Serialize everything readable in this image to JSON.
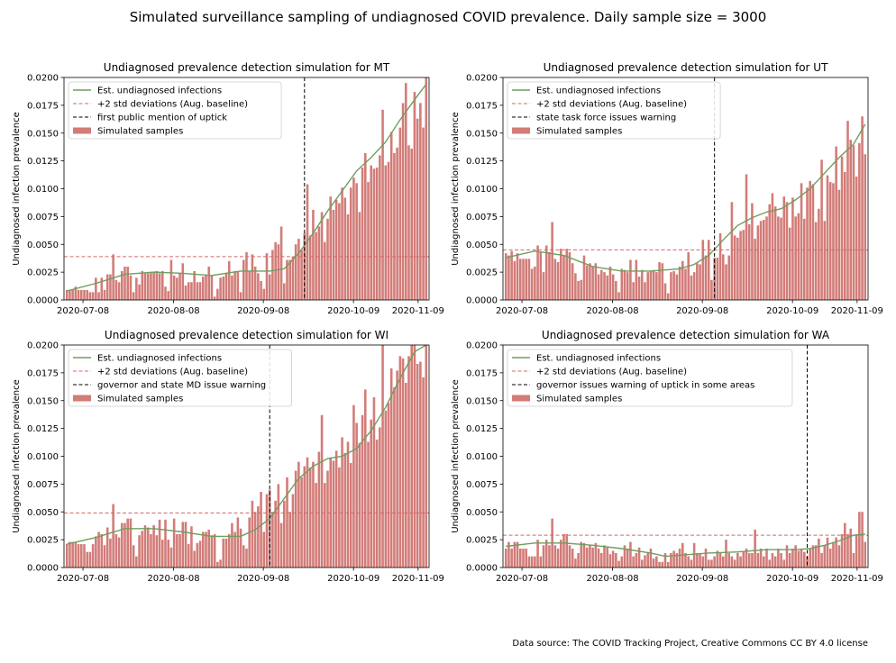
{
  "figure": {
    "suptitle": "Simulated surveillance sampling of undiagnosed COVID prevalence. Daily sample size = 3000",
    "source": "Data source: The COVID Tracking Project, Creative Commons CC BY 4.0 license"
  },
  "colors": {
    "bar": "#d27c78",
    "line": "#6f9e5e",
    "threshold": "#d46a6a",
    "event": "#000000",
    "axes": "#000000"
  },
  "chart_data": [
    {
      "type": "bar",
      "title": "Undiagnosed prevalence detection simulation for MT",
      "ylabel": "Undiagnosed infection prevalence",
      "ylim": [
        0,
        0.02
      ],
      "yticks": [
        "0.0000",
        "0.0025",
        "0.0050",
        "0.0075",
        "0.0100",
        "0.0125",
        "0.0150",
        "0.0175",
        "0.0200"
      ],
      "xticks": [
        "2020-07-08",
        "2020-08-08",
        "2020-09-08",
        "2020-10-09",
        "2020-11-09"
      ],
      "xlim": [
        -1,
        125
      ],
      "legend_position": "upper-left",
      "legend": [
        "Est. undiagnosed infections",
        "+2 std deviations (Aug. baseline)",
        "first public mention of uptick",
        "Simulated samples"
      ],
      "threshold": 0.0039,
      "event_day": 82,
      "line_points": [
        [
          0,
          0.0008
        ],
        [
          10,
          0.0015
        ],
        [
          20,
          0.0023
        ],
        [
          30,
          0.0025
        ],
        [
          40,
          0.0024
        ],
        [
          50,
          0.0022
        ],
        [
          60,
          0.0026
        ],
        [
          70,
          0.0026
        ],
        [
          75,
          0.0028
        ],
        [
          80,
          0.0042
        ],
        [
          85,
          0.006
        ],
        [
          90,
          0.008
        ],
        [
          95,
          0.0098
        ],
        [
          100,
          0.0116
        ],
        [
          105,
          0.0128
        ],
        [
          110,
          0.0142
        ],
        [
          115,
          0.0162
        ],
        [
          120,
          0.018
        ],
        [
          124,
          0.0194
        ]
      ],
      "samples": [
        0.0009,
        0.0009,
        0.0009,
        0.0012,
        0.0009,
        0.0009,
        0.0009,
        0.0009,
        0.0007,
        0.0007,
        0.002,
        0.0007,
        0.002,
        0.0009,
        0.0023,
        0.0023,
        0.0041,
        0.0018,
        0.0016,
        0.0026,
        0.003,
        0.003,
        0.0022,
        0.0007,
        0.002,
        0.0014,
        0.0026,
        0.0024,
        0.0024,
        0.0025,
        0.0025,
        0.0026,
        0.0024,
        0.0026,
        0.0012,
        0.0008,
        0.0036,
        0.0022,
        0.002,
        0.0024,
        0.0033,
        0.0013,
        0.0016,
        0.0016,
        0.0026,
        0.0016,
        0.0016,
        0.0021,
        0.0022,
        0.003,
        0.0022,
        0.0003,
        0.001,
        0.002,
        0.0021,
        0.0024,
        0.0035,
        0.0022,
        0.0026,
        0.0026,
        0.0007,
        0.0036,
        0.0043,
        0.0026,
        0.0041,
        0.003,
        0.0024,
        0.0017,
        0.001,
        0.0042,
        0.0023,
        0.0045,
        0.0052,
        0.005,
        0.0066,
        0.0015,
        0.0036,
        0.0036,
        0.0039,
        0.005,
        0.0055,
        0.0045,
        0.006,
        0.0104,
        0.0058,
        0.0081,
        0.0061,
        0.0066,
        0.0079,
        0.0052,
        0.0073,
        0.0093,
        0.0081,
        0.009,
        0.0087,
        0.0101,
        0.0092,
        0.0077,
        0.0101,
        0.011,
        0.0105,
        0.0079,
        0.0119,
        0.0132,
        0.0106,
        0.0121,
        0.0118,
        0.0119,
        0.013,
        0.0171,
        0.0121,
        0.0124,
        0.0151,
        0.0132,
        0.0137,
        0.0155,
        0.0177,
        0.0195,
        0.0139,
        0.0136,
        0.0187,
        0.0163,
        0.0177,
        0.0155,
        0.02
      ]
    },
    {
      "type": "bar",
      "title": "Undiagnosed prevalence detection simulation for UT",
      "ylabel": "Undiagnosed infection prevalence",
      "ylim": [
        0,
        0.02
      ],
      "yticks": [
        "0.0000",
        "0.0025",
        "0.0050",
        "0.0075",
        "0.0100",
        "0.0125",
        "0.0150",
        "0.0175",
        "0.0200"
      ],
      "xticks": [
        "2020-07-08",
        "2020-08-08",
        "2020-09-08",
        "2020-10-09",
        "2020-11-09"
      ],
      "xlim": [
        -1,
        125
      ],
      "legend_position": "upper-left",
      "legend": [
        "Est. undiagnosed infections",
        "+2 std deviations (Aug. baseline)",
        "state task force issues warning",
        "Simulated samples"
      ],
      "threshold": 0.0045,
      "event_day": 72,
      "line_points": [
        [
          0,
          0.0038
        ],
        [
          10,
          0.0044
        ],
        [
          20,
          0.004
        ],
        [
          30,
          0.003
        ],
        [
          40,
          0.0026
        ],
        [
          50,
          0.0026
        ],
        [
          60,
          0.0028
        ],
        [
          65,
          0.0032
        ],
        [
          70,
          0.004
        ],
        [
          75,
          0.0054
        ],
        [
          80,
          0.0067
        ],
        [
          85,
          0.0074
        ],
        [
          90,
          0.0079
        ],
        [
          95,
          0.0082
        ],
        [
          100,
          0.009
        ],
        [
          105,
          0.01
        ],
        [
          110,
          0.0114
        ],
        [
          115,
          0.0128
        ],
        [
          120,
          0.014
        ],
        [
          124,
          0.0158
        ]
      ],
      "samples": [
        0.0042,
        0.004,
        0.0044,
        0.0035,
        0.0042,
        0.0037,
        0.0037,
        0.0037,
        0.0037,
        0.0028,
        0.003,
        0.0049,
        0.0043,
        0.0025,
        0.0049,
        0.0043,
        0.007,
        0.0037,
        0.0034,
        0.0046,
        0.004,
        0.0046,
        0.0043,
        0.0033,
        0.0024,
        0.0017,
        0.0018,
        0.004,
        0.0031,
        0.0033,
        0.003,
        0.0033,
        0.0023,
        0.0027,
        0.0025,
        0.0022,
        0.003,
        0.0023,
        0.0017,
        0.0007,
        0.0028,
        0.0027,
        0.0025,
        0.0036,
        0.0016,
        0.0036,
        0.0021,
        0.0027,
        0.0016,
        0.0025,
        0.0026,
        0.0027,
        0.0025,
        0.0034,
        0.0033,
        0.0015,
        0.0006,
        0.0025,
        0.0026,
        0.0023,
        0.003,
        0.0035,
        0.0028,
        0.0043,
        0.0022,
        0.0025,
        0.0033,
        0.0032,
        0.0054,
        0.004,
        0.0054,
        0.0018,
        0.0038,
        0.0038,
        0.006,
        0.0041,
        0.0032,
        0.004,
        0.0088,
        0.0058,
        0.0056,
        0.0062,
        0.0063,
        0.0113,
        0.0068,
        0.0087,
        0.0055,
        0.0067,
        0.0071,
        0.0072,
        0.0075,
        0.0086,
        0.0096,
        0.0084,
        0.0075,
        0.0074,
        0.0093,
        0.0088,
        0.0065,
        0.0092,
        0.0075,
        0.0078,
        0.0105,
        0.0073,
        0.0101,
        0.0107,
        0.0104,
        0.007,
        0.0082,
        0.0126,
        0.0071,
        0.0112,
        0.0106,
        0.0105,
        0.0138,
        0.0099,
        0.0129,
        0.0115,
        0.0161,
        0.0144,
        0.0139,
        0.0111,
        0.0141,
        0.0165,
        0.0131
      ]
    },
    {
      "type": "bar",
      "title": "Undiagnosed prevalence detection simulation for WI",
      "ylabel": "Undiagnosed infection prevalence",
      "ylim": [
        0,
        0.02
      ],
      "yticks": [
        "0.0000",
        "0.0025",
        "0.0050",
        "0.0075",
        "0.0100",
        "0.0125",
        "0.0150",
        "0.0175",
        "0.0200"
      ],
      "xticks": [
        "2020-07-08",
        "2020-08-08",
        "2020-09-08",
        "2020-10-09",
        "2020-11-09"
      ],
      "xlim": [
        -1,
        125
      ],
      "legend_position": "upper-left",
      "legend": [
        "Est. undiagnosed infections",
        "+2 std deviations (Aug. baseline)",
        "governor and state MD issue warning",
        "Simulated samples"
      ],
      "threshold": 0.0049,
      "event_day": 70,
      "line_points": [
        [
          0,
          0.0021
        ],
        [
          10,
          0.0027
        ],
        [
          20,
          0.0035
        ],
        [
          30,
          0.0035
        ],
        [
          40,
          0.0032
        ],
        [
          50,
          0.0028
        ],
        [
          60,
          0.0028
        ],
        [
          65,
          0.0034
        ],
        [
          70,
          0.0044
        ],
        [
          75,
          0.0062
        ],
        [
          80,
          0.008
        ],
        [
          85,
          0.0091
        ],
        [
          90,
          0.0098
        ],
        [
          95,
          0.01
        ],
        [
          100,
          0.0107
        ],
        [
          105,
          0.0123
        ],
        [
          110,
          0.0144
        ],
        [
          115,
          0.017
        ],
        [
          120,
          0.0194
        ],
        [
          124,
          0.0205
        ]
      ],
      "samples": [
        0.0021,
        0.0023,
        0.0023,
        0.0023,
        0.0021,
        0.0021,
        0.0021,
        0.0014,
        0.0014,
        0.0021,
        0.0028,
        0.0032,
        0.003,
        0.002,
        0.0036,
        0.0026,
        0.0057,
        0.003,
        0.0027,
        0.004,
        0.004,
        0.0044,
        0.0044,
        0.002,
        0.001,
        0.0029,
        0.0033,
        0.0038,
        0.0036,
        0.003,
        0.0038,
        0.0029,
        0.0043,
        0.0025,
        0.0043,
        0.0025,
        0.0018,
        0.0044,
        0.003,
        0.003,
        0.0041,
        0.0041,
        0.0021,
        0.0037,
        0.0015,
        0.0022,
        0.0024,
        0.0032,
        0.0032,
        0.0034,
        0.0029,
        0.003,
        0.0005,
        0.0007,
        0.0026,
        0.0026,
        0.003,
        0.004,
        0.0032,
        0.0045,
        0.0035,
        0.002,
        0.0017,
        0.0045,
        0.006,
        0.005,
        0.0055,
        0.0068,
        0.0032,
        0.0066,
        0.007,
        0.005,
        0.006,
        0.0075,
        0.004,
        0.006,
        0.0081,
        0.005,
        0.0066,
        0.0087,
        0.0095,
        0.0081,
        0.0091,
        0.0099,
        0.009,
        0.0095,
        0.0076,
        0.0104,
        0.0137,
        0.0076,
        0.0087,
        0.0099,
        0.0096,
        0.0105,
        0.009,
        0.0117,
        0.0103,
        0.0113,
        0.0094,
        0.0146,
        0.013,
        0.0112,
        0.0137,
        0.016,
        0.0113,
        0.0133,
        0.0153,
        0.0115,
        0.0126,
        0.02,
        0.0141,
        0.0148,
        0.0179,
        0.0162,
        0.0177,
        0.019,
        0.0188,
        0.0166,
        0.019,
        0.02,
        0.02,
        0.0183,
        0.0185,
        0.0171,
        0.02
      ]
    },
    {
      "type": "bar",
      "title": "Undiagnosed prevalence detection simulation for WA",
      "ylabel": "Undiagnosed infection prevalence",
      "ylim": [
        0,
        0.02
      ],
      "yticks": [
        "0.0000",
        "0.0025",
        "0.0050",
        "0.0075",
        "0.0100",
        "0.0125",
        "0.0150",
        "0.0175",
        "0.0200"
      ],
      "xticks": [
        "2020-07-08",
        "2020-08-08",
        "2020-09-08",
        "2020-10-09",
        "2020-11-09"
      ],
      "xlim": [
        -1,
        125
      ],
      "legend_position": "upper-left",
      "legend": [
        "Est. undiagnosed infections",
        "+2 std deviations (Aug. baseline)",
        "governor issues warning of uptick in some areas",
        "Simulated samples"
      ],
      "threshold": 0.0029,
      "event_day": 104,
      "line_points": [
        [
          0,
          0.0019
        ],
        [
          10,
          0.0022
        ],
        [
          20,
          0.0022
        ],
        [
          30,
          0.002
        ],
        [
          40,
          0.0017
        ],
        [
          50,
          0.0013
        ],
        [
          55,
          0.001
        ],
        [
          60,
          0.0011
        ],
        [
          70,
          0.0013
        ],
        [
          80,
          0.0014
        ],
        [
          90,
          0.0016
        ],
        [
          100,
          0.0016
        ],
        [
          105,
          0.0017
        ],
        [
          110,
          0.002
        ],
        [
          115,
          0.0024
        ],
        [
          120,
          0.0029
        ],
        [
          124,
          0.003
        ]
      ],
      "samples": [
        0.0017,
        0.0023,
        0.0017,
        0.0023,
        0.0023,
        0.0017,
        0.0017,
        0.0017,
        0.001,
        0.001,
        0.001,
        0.0025,
        0.001,
        0.002,
        0.0025,
        0.002,
        0.0044,
        0.002,
        0.0017,
        0.0025,
        0.003,
        0.003,
        0.002,
        0.0017,
        0.0008,
        0.0013,
        0.0023,
        0.0022,
        0.0018,
        0.002,
        0.0018,
        0.0022,
        0.0017,
        0.0013,
        0.002,
        0.0018,
        0.0012,
        0.0015,
        0.0013,
        0.0006,
        0.001,
        0.002,
        0.0017,
        0.0023,
        0.001,
        0.0013,
        0.0018,
        0.0007,
        0.0011,
        0.0013,
        0.0017,
        0.0008,
        0.001,
        0.0005,
        0.0005,
        0.0013,
        0.0005,
        0.0013,
        0.0015,
        0.0013,
        0.0017,
        0.0022,
        0.0013,
        0.001,
        0.0007,
        0.0022,
        0.0013,
        0.0013,
        0.001,
        0.0017,
        0.0007,
        0.0007,
        0.001,
        0.0015,
        0.0013,
        0.001,
        0.0025,
        0.0013,
        0.001,
        0.0007,
        0.0013,
        0.001,
        0.0014,
        0.0017,
        0.0013,
        0.0013,
        0.0034,
        0.0013,
        0.0017,
        0.001,
        0.0017,
        0.0007,
        0.0013,
        0.001,
        0.0017,
        0.0013,
        0.0007,
        0.002,
        0.0013,
        0.0017,
        0.002,
        0.0015,
        0.0017,
        0.0014,
        0.001,
        0.0017,
        0.002,
        0.002,
        0.0026,
        0.0013,
        0.002,
        0.0027,
        0.0017,
        0.0023,
        0.0027,
        0.002,
        0.003,
        0.004,
        0.003,
        0.0035,
        0.0013,
        0.003,
        0.005,
        0.005,
        0.0023
      ]
    }
  ]
}
